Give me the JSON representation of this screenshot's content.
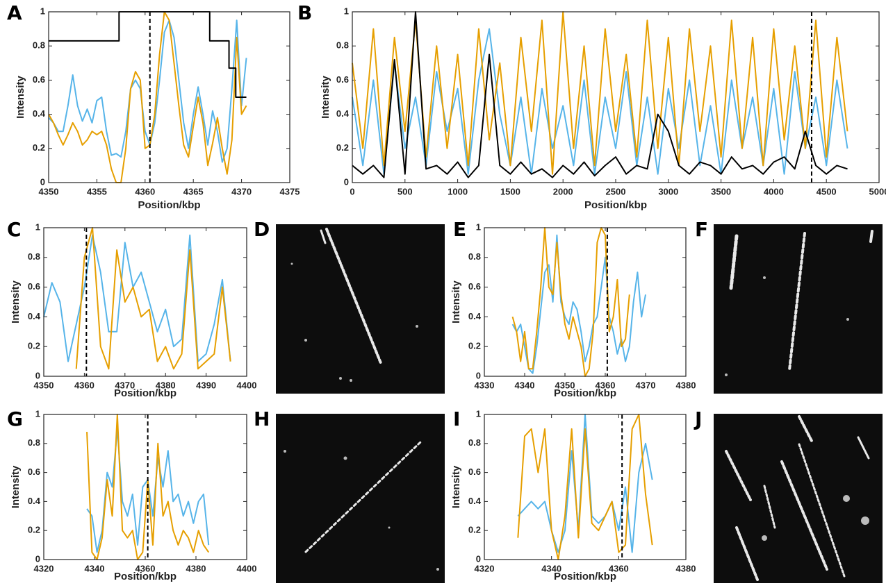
{
  "chart_data": [
    {
      "type": "line",
      "panel": "A",
      "xlabel": "Position/kbp",
      "ylabel": "Intensity",
      "xlim": [
        4350,
        4375
      ],
      "xticks": [
        4350,
        4355,
        4360,
        4365,
        4370,
        4375
      ],
      "ylim": [
        0,
        1
      ],
      "yticks": [
        0,
        0.2,
        0.4,
        0.6,
        0.8,
        1
      ],
      "vline": 4360.5,
      "x": [
        4350,
        4350.5,
        4351,
        4351.5,
        4352,
        4352.5,
        4353,
        4353.5,
        4354,
        4354.5,
        4355,
        4355.5,
        4356,
        4356.5,
        4357,
        4357.5,
        4358,
        4358.5,
        4359,
        4359.5,
        4360,
        4360.5,
        4361,
        4361.5,
        4362,
        4362.5,
        4363,
        4363.5,
        4364,
        4364.5,
        4365,
        4365.5,
        4366,
        4366.5,
        4367,
        4367.5,
        4368,
        4368.5,
        4369,
        4369.5,
        4370,
        4370.5
      ],
      "series": [
        {
          "color": "#56b4e9",
          "values": [
            0.38,
            0.35,
            0.3,
            0.3,
            0.45,
            0.63,
            0.45,
            0.36,
            0.43,
            0.35,
            0.48,
            0.5,
            0.3,
            0.16,
            0.17,
            0.15,
            0.3,
            0.55,
            0.6,
            0.55,
            0.3,
            0.22,
            0.35,
            0.6,
            0.88,
            0.95,
            0.85,
            0.6,
            0.35,
            0.2,
            0.4,
            0.56,
            0.4,
            0.22,
            0.42,
            0.3,
            0.12,
            0.2,
            0.55,
            0.95,
            0.45,
            0.73
          ]
        },
        {
          "color": "#e69f00",
          "values": [
            0.4,
            0.35,
            0.28,
            0.22,
            0.28,
            0.35,
            0.3,
            0.22,
            0.25,
            0.3,
            0.28,
            0.3,
            0.22,
            0.08,
            0,
            0,
            0.2,
            0.55,
            0.65,
            0.6,
            0.2,
            0.22,
            0.4,
            0.75,
            1,
            0.95,
            0.7,
            0.45,
            0.22,
            0.15,
            0.33,
            0.5,
            0.35,
            0.1,
            0.23,
            0.38,
            0.2,
            0.05,
            0.25,
            0.85,
            0.4,
            0.45
          ]
        },
        {
          "color": "#000000",
          "x": [
            4350,
            4357.3,
            4357.3,
            4366.7,
            4366.7,
            4368.7,
            4368.7,
            4369.4,
            4369.4,
            4370.5
          ],
          "values": [
            0.83,
            0.83,
            1,
            1,
            0.83,
            0.83,
            0.67,
            0.67,
            0.5,
            0.5
          ]
        }
      ]
    },
    {
      "type": "line",
      "panel": "B",
      "xlabel": "Position/kbp",
      "ylabel": "Intensity",
      "xlim": [
        0,
        5000
      ],
      "xticks": [
        0,
        500,
        1000,
        1500,
        2000,
        2500,
        3000,
        3500,
        4000,
        4500,
        5000
      ],
      "ylim": [
        0,
        1
      ],
      "yticks": [
        0,
        0.2,
        0.4,
        0.6,
        0.8,
        1
      ],
      "vline": 4360,
      "x": [
        0,
        100,
        200,
        300,
        400,
        500,
        600,
        700,
        800,
        900,
        1000,
        1100,
        1200,
        1300,
        1400,
        1500,
        1600,
        1700,
        1800,
        1900,
        2000,
        2100,
        2200,
        2300,
        2400,
        2500,
        2600,
        2700,
        2800,
        2900,
        3000,
        3100,
        3200,
        3300,
        3400,
        3500,
        3600,
        3700,
        3800,
        3900,
        4000,
        4100,
        4200,
        4300,
        4400,
        4500,
        4600,
        4700
      ],
      "series": [
        {
          "color": "#56b4e9",
          "values": [
            0.5,
            0.1,
            0.6,
            0.05,
            0.7,
            0.2,
            0.5,
            0.1,
            0.65,
            0.3,
            0.55,
            0.05,
            0.6,
            0.9,
            0.4,
            0.1,
            0.5,
            0.05,
            0.55,
            0.2,
            0.45,
            0.1,
            0.6,
            0.05,
            0.5,
            0.2,
            0.65,
            0.1,
            0.5,
            0.05,
            0.55,
            0.2,
            0.6,
            0.1,
            0.45,
            0.05,
            0.6,
            0.2,
            0.5,
            0.1,
            0.55,
            0.05,
            0.65,
            0.2,
            0.5,
            0.1,
            0.6,
            0.2
          ]
        },
        {
          "color": "#e69f00",
          "values": [
            0.7,
            0.2,
            0.9,
            0.1,
            0.85,
            0.3,
            0.95,
            0.15,
            0.8,
            0.2,
            0.75,
            0.1,
            0.9,
            0.25,
            0.7,
            0.1,
            0.85,
            0.3,
            0.95,
            0.05,
            1.0,
            0.2,
            0.8,
            0.1,
            0.9,
            0.3,
            0.75,
            0.15,
            0.95,
            0.2,
            0.85,
            0.1,
            0.9,
            0.3,
            0.8,
            0.15,
            0.95,
            0.2,
            0.85,
            0.1,
            0.9,
            0.25,
            0.8,
            0.2,
            0.95,
            0.15,
            0.85,
            0.3
          ]
        },
        {
          "color": "#000000",
          "values": [
            0.1,
            0.05,
            0.1,
            0.03,
            0.72,
            0.05,
            1.0,
            0.08,
            0.1,
            0.05,
            0.12,
            0.03,
            0.1,
            0.75,
            0.1,
            0.05,
            0.12,
            0.05,
            0.08,
            0.03,
            0.1,
            0.05,
            0.12,
            0.04,
            0.1,
            0.15,
            0.05,
            0.1,
            0.08,
            0.4,
            0.3,
            0.1,
            0.05,
            0.12,
            0.1,
            0.05,
            0.15,
            0.08,
            0.1,
            0.05,
            0.12,
            0.15,
            0.08,
            0.3,
            0.1,
            0.05,
            0.1,
            0.08
          ]
        }
      ]
    },
    {
      "type": "line",
      "panel": "C",
      "xlabel": "Position/kbp",
      "ylabel": "Intensity",
      "xlim": [
        4350,
        4400
      ],
      "xticks": [
        4350,
        4360,
        4370,
        4380,
        4390,
        4400
      ],
      "ylim": [
        0,
        1
      ],
      "yticks": [
        0,
        0.2,
        0.4,
        0.6,
        0.8,
        1
      ],
      "vline": 4360.5,
      "x": [
        4350,
        4352,
        4354,
        4356,
        4358,
        4360,
        4362,
        4364,
        4366,
        4368,
        4370,
        4372,
        4374,
        4376,
        4378,
        4380,
        4382,
        4384,
        4386,
        4388,
        4390,
        4392,
        4394,
        4396
      ],
      "series": [
        {
          "color": "#56b4e9",
          "values": [
            0.4,
            0.63,
            0.5,
            0.1,
            0.35,
            0.6,
            0.95,
            0.7,
            0.3,
            0.3,
            0.9,
            0.6,
            0.7,
            0.5,
            0.3,
            0.45,
            0.2,
            0.25,
            0.95,
            0.1,
            0.15,
            0.35,
            0.65,
            0.1
          ]
        },
        {
          "color": "#e69f00",
          "values": [
            null,
            null,
            null,
            null,
            0.05,
            0.8,
            1.0,
            0.2,
            0.05,
            0.85,
            0.5,
            0.6,
            0.4,
            0.45,
            0.1,
            0.2,
            0.05,
            0.15,
            0.85,
            0.05,
            0.1,
            0.15,
            0.6,
            0.1
          ]
        }
      ]
    },
    {
      "type": "line",
      "panel": "E",
      "xlabel": "Position/kbp",
      "ylabel": "Intensity",
      "xlim": [
        4330,
        4380
      ],
      "xticks": [
        4330,
        4340,
        4350,
        4360,
        4370,
        4380
      ],
      "ylim": [
        0,
        1
      ],
      "yticks": [
        0,
        0.2,
        0.4,
        0.6,
        0.8,
        1
      ],
      "vline": 4360.5,
      "x": [
        4337,
        4338,
        4339,
        4340,
        4341,
        4342,
        4343,
        4344,
        4345,
        4346,
        4347,
        4348,
        4349,
        4350,
        4351,
        4352,
        4353,
        4354,
        4355,
        4356,
        4357,
        4358,
        4359,
        4360,
        4361,
        4362,
        4363,
        4364,
        4365,
        4366,
        4367,
        4368,
        4369,
        4370
      ],
      "series": [
        {
          "color": "#56b4e9",
          "values": [
            0.35,
            0.3,
            0.35,
            0.2,
            0.05,
            0.02,
            0.2,
            0.45,
            0.7,
            0.75,
            0.5,
            0.95,
            0.5,
            0.4,
            0.35,
            0.5,
            0.45,
            0.3,
            0.1,
            0.2,
            0.35,
            0.4,
            0.6,
            0.8,
            0.4,
            0.3,
            0.15,
            0.25,
            0.1,
            0.2,
            0.5,
            0.7,
            0.4,
            0.55
          ]
        },
        {
          "color": "#e69f00",
          "values": [
            0.4,
            0.3,
            0.1,
            0.3,
            0.05,
            0.05,
            0.3,
            0.6,
            1.0,
            0.6,
            0.55,
            0.9,
            0.55,
            0.35,
            0.25,
            0.4,
            0.3,
            0.2,
            0.0,
            0.05,
            0.3,
            0.9,
            1.0,
            0.95,
            0.3,
            0.4,
            0.65,
            0.2,
            0.25,
            0.55,
            null,
            null,
            null,
            null
          ]
        }
      ]
    },
    {
      "type": "line",
      "panel": "G",
      "xlabel": "Position/kbp",
      "ylabel": "Intensity",
      "xlim": [
        4320,
        4400
      ],
      "xticks": [
        4320,
        4340,
        4360,
        4380,
        4400
      ],
      "ylim": [
        0,
        1
      ],
      "yticks": [
        0,
        0.2,
        0.4,
        0.6,
        0.8,
        1
      ],
      "vline": 4361,
      "x": [
        4337,
        4339,
        4341,
        4343,
        4345,
        4347,
        4349,
        4351,
        4353,
        4355,
        4357,
        4359,
        4361,
        4363,
        4365,
        4367,
        4369,
        4371,
        4373,
        4375,
        4377,
        4379,
        4381,
        4383,
        4385
      ],
      "series": [
        {
          "color": "#56b4e9",
          "values": [
            0.35,
            0.3,
            0.05,
            0.2,
            0.6,
            0.5,
            0.9,
            0.4,
            0.3,
            0.45,
            0.1,
            0.5,
            0.55,
            0.3,
            0.7,
            0.5,
            0.75,
            0.4,
            0.45,
            0.3,
            0.4,
            0.25,
            0.4,
            0.45,
            0.1
          ]
        },
        {
          "color": "#e69f00",
          "values": [
            0.88,
            0.05,
            0.0,
            0.15,
            0.55,
            0.3,
            1.0,
            0.2,
            0.15,
            0.2,
            0.0,
            0.05,
            0.55,
            0.1,
            0.8,
            0.3,
            0.4,
            0.2,
            0.1,
            0.2,
            0.15,
            0.05,
            0.2,
            0.1,
            0.05
          ]
        }
      ]
    },
    {
      "type": "line",
      "panel": "I",
      "xlabel": "Position/kbp",
      "ylabel": "Intensity",
      "xlim": [
        4320,
        4380
      ],
      "xticks": [
        4320,
        4340,
        4360,
        4380
      ],
      "ylim": [
        0,
        1
      ],
      "yticks": [
        0,
        0.2,
        0.4,
        0.6,
        0.8,
        1
      ],
      "vline": 4361,
      "x": [
        4330,
        4332,
        4334,
        4336,
        4338,
        4340,
        4342,
        4344,
        4346,
        4348,
        4350,
        4352,
        4354,
        4356,
        4358,
        4360,
        4362,
        4364,
        4366,
        4368,
        4370
      ],
      "series": [
        {
          "color": "#56b4e9",
          "values": [
            0.3,
            0.35,
            0.4,
            0.35,
            0.4,
            0.2,
            0.05,
            0.2,
            0.75,
            0.2,
            1.0,
            0.3,
            0.25,
            0.3,
            0.4,
            0.2,
            0.5,
            0.05,
            0.6,
            0.8,
            0.55
          ]
        },
        {
          "color": "#e69f00",
          "values": [
            0.15,
            0.85,
            0.9,
            0.6,
            0.9,
            0.2,
            0.0,
            0.3,
            0.9,
            0.15,
            0.9,
            0.25,
            0.2,
            0.3,
            0.4,
            0.05,
            0.1,
            0.9,
            1.0,
            0.45,
            0.1
          ]
        }
      ]
    }
  ],
  "images": [
    {
      "panel": "D"
    },
    {
      "panel": "F"
    },
    {
      "panel": "H"
    },
    {
      "panel": "J"
    }
  ]
}
